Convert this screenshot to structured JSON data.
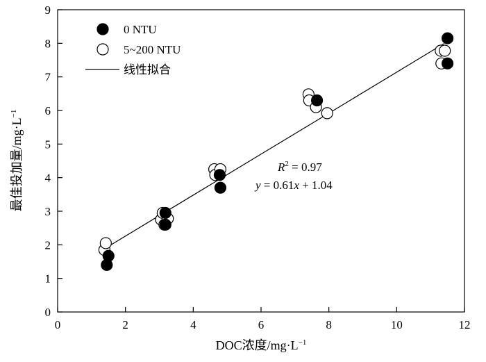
{
  "chart_data": {
    "type": "scatter",
    "xlabel": "DOC浓度/mg·L",
    "xlabel_sup": "−1",
    "ylabel": "最佳投加量/mg·L",
    "ylabel_sup": "−1",
    "xlim": [
      0,
      12
    ],
    "ylim": [
      0,
      9
    ],
    "xticks": [
      0,
      2,
      4,
      6,
      8,
      10,
      12
    ],
    "yticks": [
      0,
      1,
      2,
      3,
      4,
      5,
      6,
      7,
      8,
      9
    ],
    "grid": false,
    "legend_position": "top-left",
    "series": [
      {
        "name": "0 NTU",
        "marker": "filled-circle",
        "color": "#000000",
        "points": [
          {
            "x": 1.45,
            "y": 1.4
          },
          {
            "x": 1.5,
            "y": 1.67
          },
          {
            "x": 3.18,
            "y": 2.95
          },
          {
            "x": 3.18,
            "y": 2.6
          },
          {
            "x": 4.78,
            "y": 4.08
          },
          {
            "x": 4.8,
            "y": 3.7
          },
          {
            "x": 7.65,
            "y": 6.3
          },
          {
            "x": 11.5,
            "y": 8.15
          },
          {
            "x": 11.5,
            "y": 7.4
          }
        ]
      },
      {
        "name": "5~200 NTU",
        "marker": "open-circle",
        "color": "#000000",
        "points": [
          {
            "x": 1.38,
            "y": 1.85
          },
          {
            "x": 1.42,
            "y": 2.05
          },
          {
            "x": 3.05,
            "y": 2.75
          },
          {
            "x": 3.1,
            "y": 2.95
          },
          {
            "x": 3.15,
            "y": 2.6
          },
          {
            "x": 3.25,
            "y": 2.78
          },
          {
            "x": 4.62,
            "y": 4.25
          },
          {
            "x": 4.65,
            "y": 4.08
          },
          {
            "x": 4.8,
            "y": 4.25
          },
          {
            "x": 7.4,
            "y": 6.48
          },
          {
            "x": 7.42,
            "y": 6.3
          },
          {
            "x": 7.62,
            "y": 6.1
          },
          {
            "x": 7.95,
            "y": 5.92
          },
          {
            "x": 11.3,
            "y": 7.78
          },
          {
            "x": 11.32,
            "y": 7.4
          },
          {
            "x": 11.42,
            "y": 7.78
          }
        ]
      }
    ],
    "fit": {
      "name": "线性拟合",
      "slope": 0.61,
      "intercept": 1.04,
      "x_range": [
        1.4,
        11.4
      ]
    },
    "annotation": {
      "r2_label": "R",
      "r2_exp": "2",
      "r2_value": " = 0.97",
      "eq_y": "y",
      "eq_mid": " = 0.61",
      "eq_x": "x",
      "eq_end": " + 1.04"
    }
  }
}
